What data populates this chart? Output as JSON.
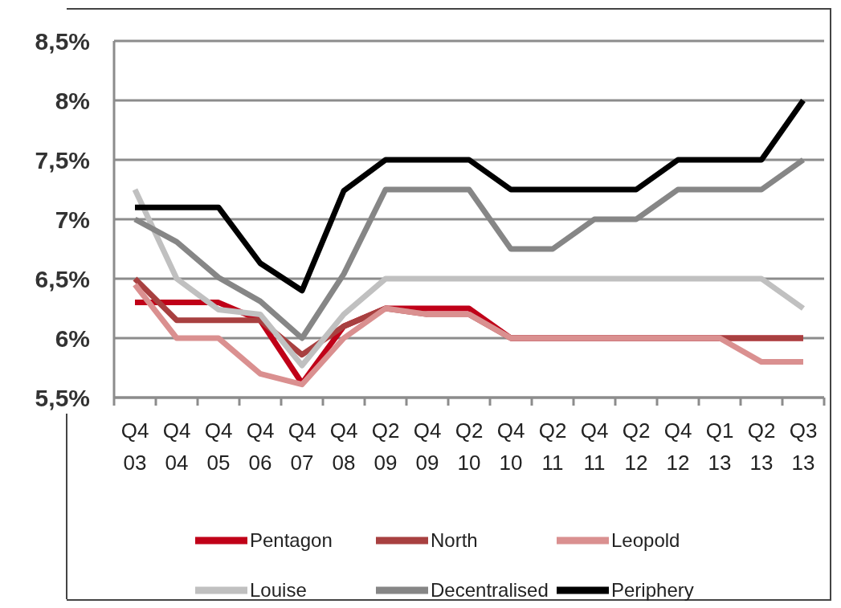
{
  "chart_data": {
    "type": "line",
    "categories": [
      "Q4 03",
      "Q4 04",
      "Q4 05",
      "Q4 06",
      "Q4 07",
      "Q4 08",
      "Q2 09",
      "Q4 09",
      "Q2 10",
      "Q4 10",
      "Q2 11",
      "Q4 11",
      "Q2 12",
      "Q4 12",
      "Q1 13",
      "Q2 13",
      "Q3 13"
    ],
    "series": [
      {
        "name": "Pentagon",
        "color": "#c00018",
        "values": [
          6.3,
          6.3,
          6.3,
          6.15,
          5.62,
          6.1,
          6.25,
          6.25,
          6.25,
          6.0,
          6.0,
          6.0,
          6.0,
          6.0,
          6.0,
          6.0,
          6.0
        ]
      },
      {
        "name": "North",
        "color": "#a84040",
        "values": [
          6.5,
          6.15,
          6.15,
          6.15,
          5.86,
          6.1,
          6.25,
          6.2,
          6.2,
          6.0,
          6.0,
          6.0,
          6.0,
          6.0,
          6.0,
          6.0,
          6.0
        ]
      },
      {
        "name": "Leopold",
        "color": "#da9090",
        "values": [
          6.45,
          6.0,
          6.0,
          5.7,
          5.61,
          6.0,
          6.25,
          6.2,
          6.2,
          6.0,
          6.0,
          6.0,
          6.0,
          6.0,
          6.0,
          5.8,
          5.8
        ]
      },
      {
        "name": "Louise",
        "color": "#c0c0c0",
        "values": [
          7.25,
          6.5,
          6.24,
          6.2,
          5.77,
          6.2,
          6.5,
          6.5,
          6.5,
          6.5,
          6.5,
          6.5,
          6.5,
          6.5,
          6.5,
          6.5,
          6.25
        ]
      },
      {
        "name": "Decentralised",
        "color": "#868686",
        "values": [
          7.0,
          6.81,
          6.51,
          6.31,
          6.0,
          6.54,
          7.25,
          7.25,
          7.25,
          6.75,
          6.75,
          7.0,
          7.0,
          7.25,
          7.25,
          7.25,
          7.5
        ]
      },
      {
        "name": "Periphery",
        "color": "#000000",
        "values": [
          7.1,
          7.1,
          7.1,
          6.63,
          6.4,
          7.24,
          7.5,
          7.5,
          7.5,
          7.25,
          7.25,
          7.25,
          7.25,
          7.5,
          7.5,
          7.5,
          8.0
        ]
      }
    ],
    "ylim": [
      5.5,
      8.5
    ],
    "yticks": [
      {
        "value": 5.5,
        "label": "5,5%"
      },
      {
        "value": 6,
        "label": "6%"
      },
      {
        "value": 6.5,
        "label": "6,5%"
      },
      {
        "value": 7,
        "label": "7%"
      },
      {
        "value": 7.5,
        "label": "7,5%"
      },
      {
        "value": 8,
        "label": "8%"
      },
      {
        "value": 8.5,
        "label": "8,5%"
      }
    ],
    "grid": "y",
    "legend": "bottom",
    "line_style": "solid"
  }
}
